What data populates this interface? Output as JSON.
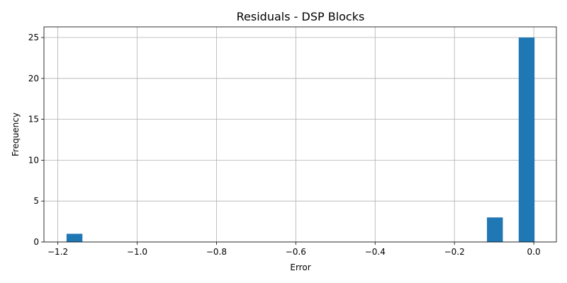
{
  "chart_data": {
    "type": "bar",
    "title": "Residuals - DSP Blocks",
    "xlabel": "Error",
    "ylabel": "Frequency",
    "xlim": [
      -1.235,
      0.057
    ],
    "ylim": [
      0,
      26.3
    ],
    "xticks": [
      -1.2,
      -1.0,
      -0.8,
      -0.6,
      -0.4,
      -0.2,
      0.0
    ],
    "xtick_labels": [
      "−1.2",
      "−1.0",
      "−0.8",
      "−0.6",
      "−0.4",
      "−0.2",
      "0.0"
    ],
    "yticks": [
      0,
      5,
      10,
      15,
      20,
      25
    ],
    "ytick_labels": [
      "0",
      "5",
      "10",
      "15",
      "20",
      "25"
    ],
    "grid": true,
    "bar_color": "#1f77b4",
    "bins": [
      {
        "x0": -1.178,
        "x1": -1.138,
        "count": 1
      },
      {
        "x0": -0.118,
        "x1": -0.078,
        "count": 3
      },
      {
        "x0": -0.038,
        "x1": 0.002,
        "count": 25
      }
    ]
  }
}
